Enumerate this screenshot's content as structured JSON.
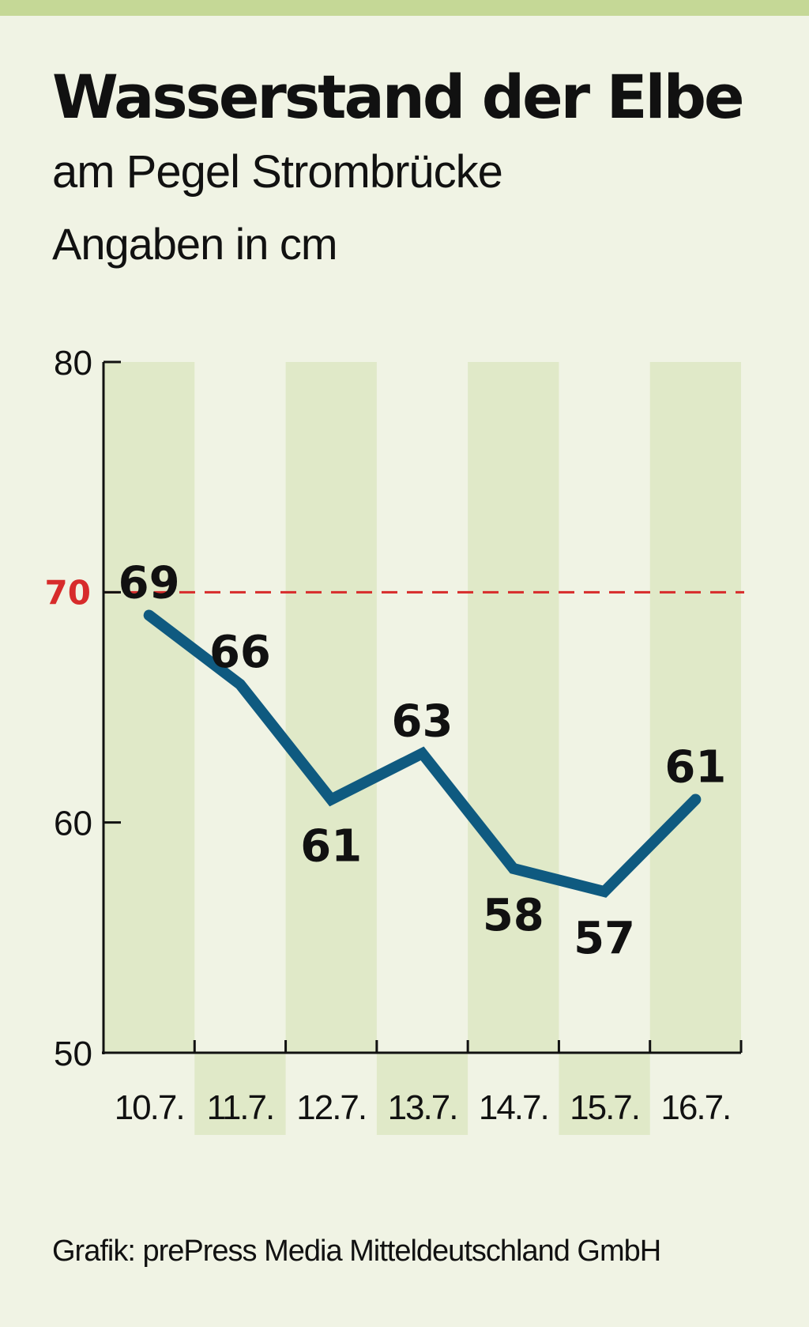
{
  "title": "Wasserstand der Elbe",
  "subtitle": "am Pegel Strombrücke",
  "unit_note": "Angaben in cm",
  "credit": "Grafik: prePress Media Mitteldeutschland GmbH",
  "colors": {
    "background": "#f0f3e4",
    "band": "#e0e9c8",
    "top_bar": "#c5d896",
    "line": "#0f5a80",
    "reference": "#d72b2b",
    "axis": "#111111"
  },
  "chart_data": {
    "type": "line",
    "categories": [
      "10.7.",
      "11.7.",
      "12.7.",
      "13.7.",
      "14.7.",
      "15.7.",
      "16.7."
    ],
    "values": [
      69,
      66,
      61,
      63,
      58,
      57,
      61
    ],
    "data_labels": [
      "69",
      "66",
      "61",
      "63",
      "58",
      "57",
      "61"
    ],
    "data_label_positions": [
      "above",
      "above",
      "below",
      "above",
      "below",
      "below",
      "above"
    ],
    "ylim": [
      50,
      80
    ],
    "yticks": [
      50,
      60,
      80
    ],
    "reference_line": {
      "value": 70,
      "label": "70",
      "style": "dashed"
    },
    "grid": false,
    "xlabel": "",
    "ylabel": ""
  }
}
